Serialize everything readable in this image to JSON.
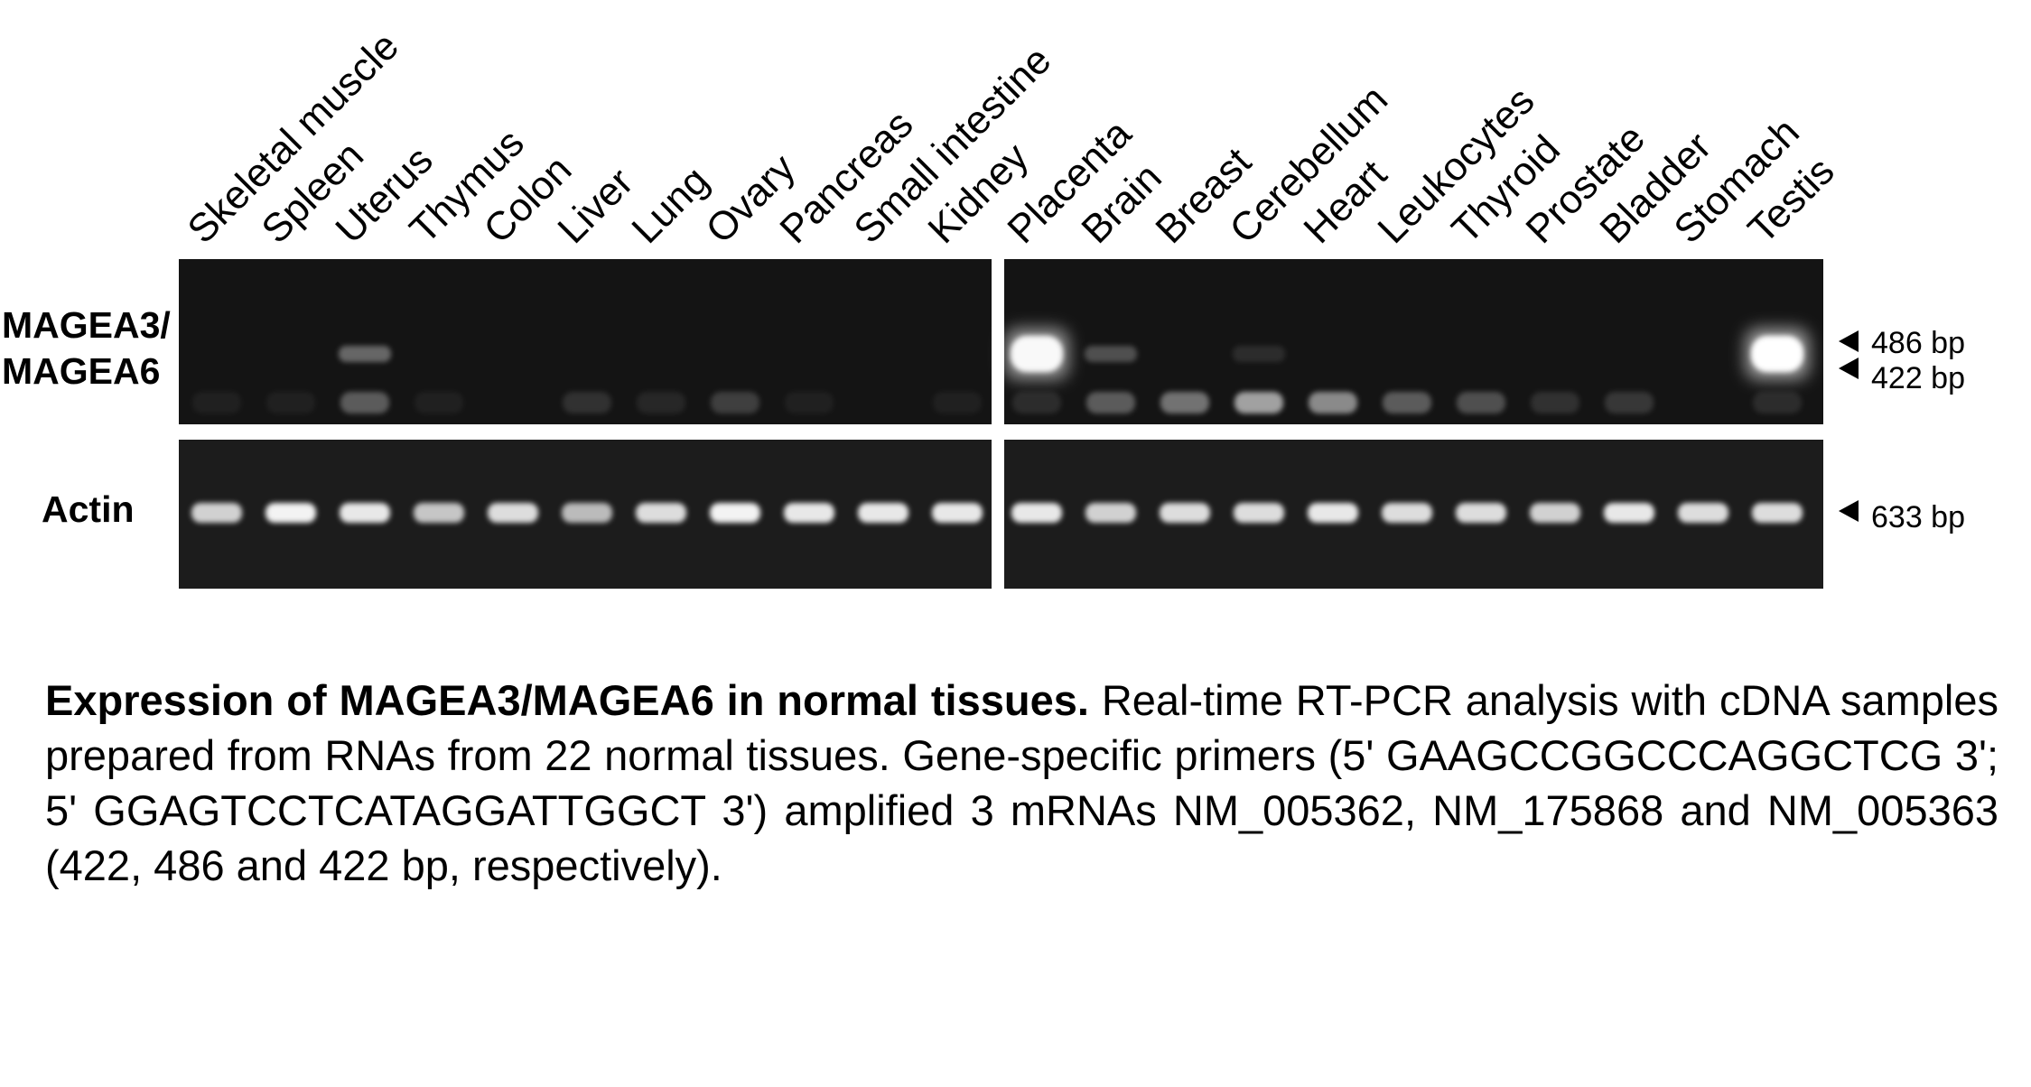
{
  "figure": {
    "lanes_left": [
      "Skeletal muscle",
      "Spleen",
      "Uterus",
      "Thymus",
      "Colon",
      "Liver",
      "Lung",
      "Ovary",
      "Pancreas",
      "Small intestine",
      "Kidney"
    ],
    "lanes_right": [
      "Placenta",
      "Brain",
      "Breast",
      "Cerebellum",
      "Heart",
      "Leukocytes",
      "Thyroid",
      "Prostate",
      "Bladder",
      "Stomach",
      "Testis"
    ],
    "row_labels": {
      "mage_line1": "MAGEA3/",
      "mage_line2": "MAGEA6",
      "actin": "Actin"
    },
    "markers": {
      "m486": "486 bp",
      "m422": "422 bp",
      "m633": "633 bp"
    },
    "colors": {
      "gel_background": "#141414",
      "band": "#ffffff",
      "text": "#000000"
    },
    "band_intensity": {
      "mage_upper": [
        0,
        0,
        0.35,
        0,
        0,
        0,
        0,
        0,
        0,
        0,
        0,
        0.95,
        0.25,
        0,
        0.1,
        0,
        0,
        0,
        0,
        0,
        0,
        1.0
      ],
      "mage_lower": [
        0.05,
        0.05,
        0.3,
        0.05,
        0,
        0.12,
        0.08,
        0.18,
        0.05,
        0,
        0.05,
        0.1,
        0.3,
        0.4,
        0.6,
        0.5,
        0.3,
        0.25,
        0.12,
        0.15,
        0,
        0.1
      ],
      "actin": [
        0.8,
        0.95,
        0.9,
        0.75,
        0.85,
        0.7,
        0.85,
        0.95,
        0.9,
        0.9,
        0.9,
        0.9,
        0.8,
        0.85,
        0.85,
        0.9,
        0.85,
        0.85,
        0.8,
        0.9,
        0.85,
        0.85
      ]
    }
  },
  "caption": {
    "title": "Expression of MAGEA3/MAGEA6 in normal tissues.",
    "body": "Real-time RT-PCR analysis with cDNA samples prepared from RNAs from 22 normal tissues. Gene-specific primers (5' GAAGCCGGCCCAGGCTCG 3'; 5' GGAGTCCTCATAGGATTGGCT 3') amplified 3 mRNAs NM_005362, NM_175868 and NM_005363 (422, 486 and 422 bp, respectively)."
  }
}
